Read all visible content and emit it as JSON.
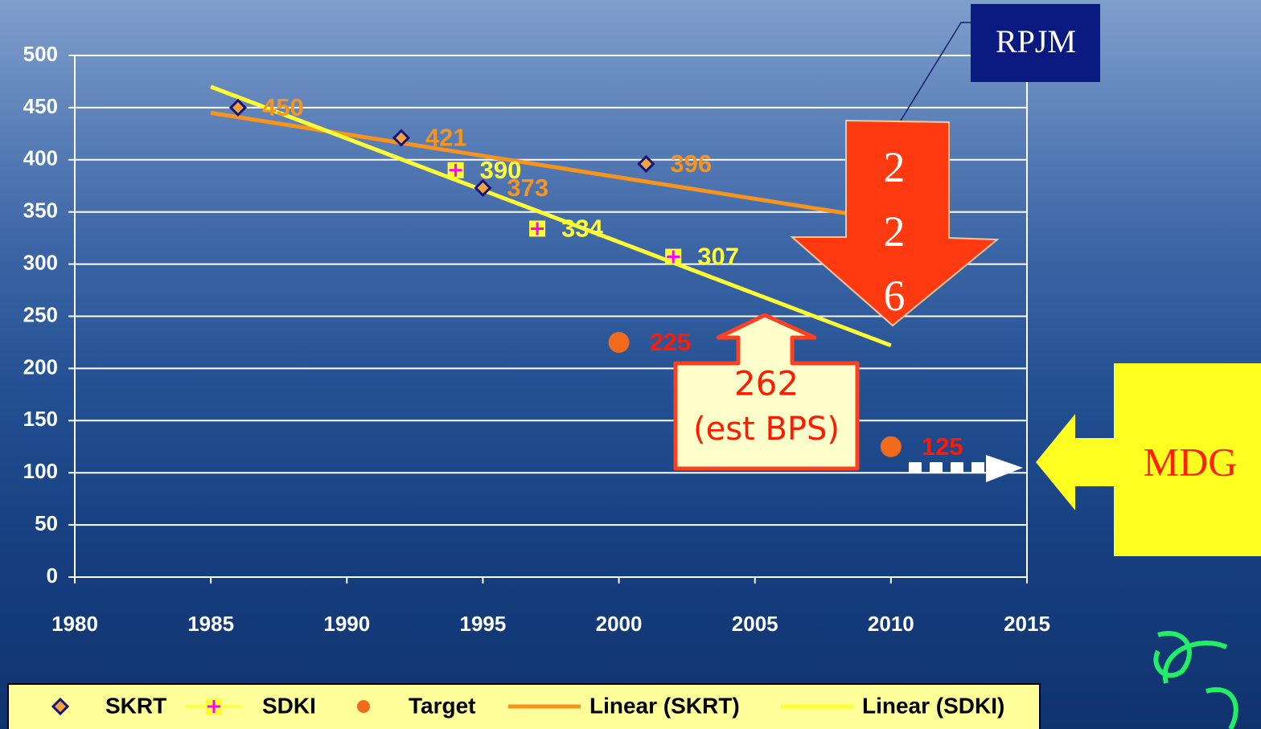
{
  "chart_data": {
    "type": "scatter",
    "series": [
      {
        "name": "SKRT",
        "marker": "diamond",
        "color": "#f4a23c",
        "label_color": "#f7941d",
        "x": [
          1986,
          1992,
          1995,
          2001
        ],
        "values": [
          450,
          421,
          373,
          396
        ]
      },
      {
        "name": "SDKI",
        "marker": "plus",
        "color": "#ff00ff",
        "label_color": "#ffff33",
        "x": [
          1994,
          1997,
          2002
        ],
        "values": [
          390,
          334,
          307
        ]
      },
      {
        "name": "Target",
        "marker": "circle",
        "color": "#f26a1b",
        "label_color": "#ff1a00",
        "x": [
          2000,
          2010
        ],
        "values": [
          225,
          125
        ]
      },
      {
        "name": "Linear (SKRT)",
        "marker": "line",
        "color": "#f7941d",
        "x": [
          1985,
          2010
        ],
        "values": [
          445,
          342
        ]
      },
      {
        "name": "Linear (SDKI)",
        "marker": "line",
        "color": "#ffff33",
        "x": [
          1985,
          2010
        ],
        "values": [
          470,
          222
        ]
      }
    ],
    "xlim": [
      1980,
      2015
    ],
    "xticks": [
      1980,
      1985,
      1990,
      1995,
      2000,
      2005,
      2010,
      2015
    ],
    "ylim": [
      0,
      500
    ],
    "yticks": [
      0,
      50,
      100,
      150,
      200,
      250,
      300,
      350,
      400,
      450,
      500
    ],
    "grid": true,
    "legend": "bottom",
    "annotations": {
      "rpjm": "RPJM",
      "rpjm_value": "226",
      "bps_value": "262",
      "bps_note": "(est BPS)",
      "mdg": "MDG"
    }
  }
}
